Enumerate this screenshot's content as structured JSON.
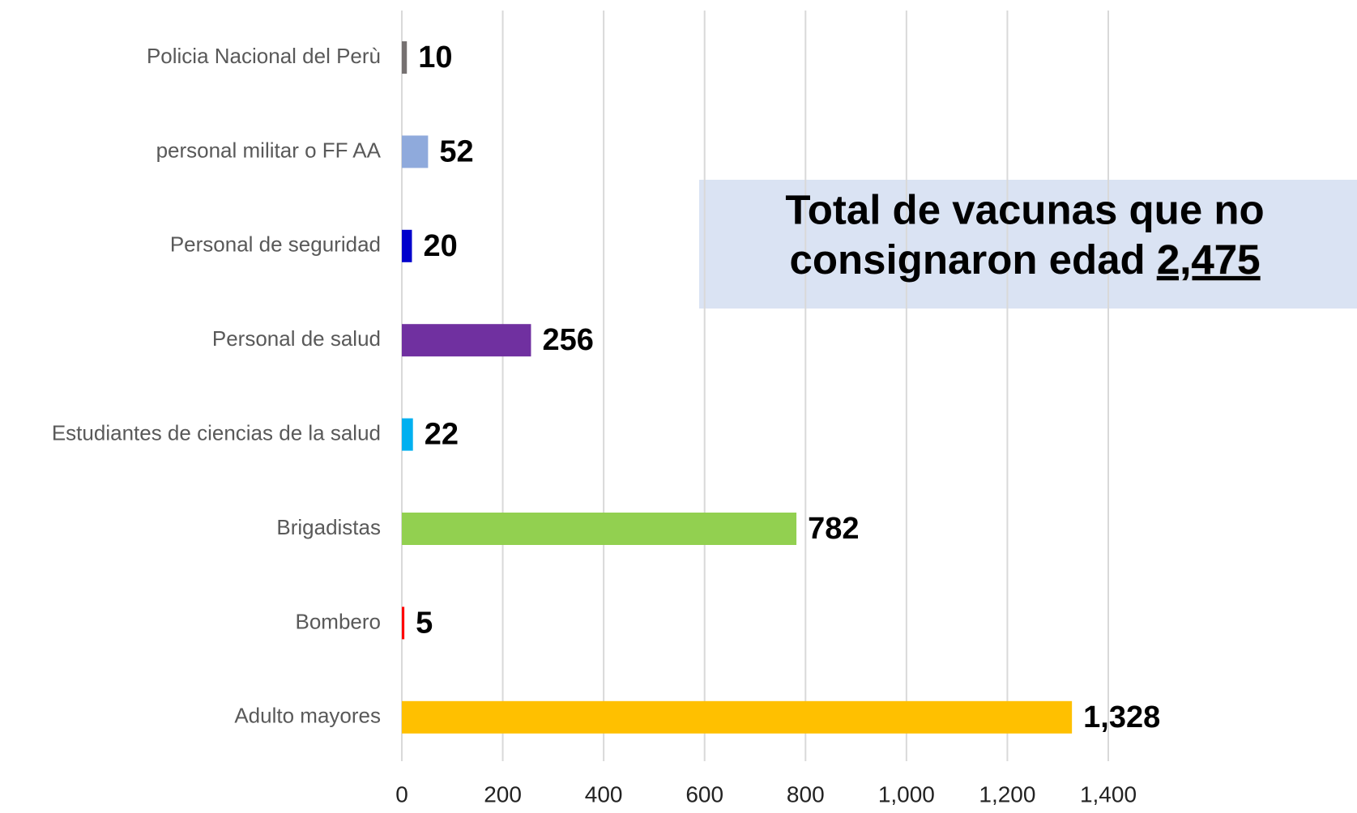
{
  "chart_data": {
    "type": "barh",
    "categories": [
      "Policia Nacional del Perù",
      "personal militar o FF AA",
      "Personal de seguridad",
      "Personal de salud",
      "Estudiantes de ciencias de la salud",
      "Brigadistas",
      "Bombero",
      "Adulto mayores"
    ],
    "values": [
      10,
      52,
      20,
      256,
      22,
      782,
      5,
      1328
    ],
    "value_labels": [
      "10",
      "52",
      "20",
      "256",
      "22",
      "782",
      "5",
      "1,328"
    ],
    "colors": [
      "#767171",
      "#8faadc",
      "#0000cc",
      "#7030a0",
      "#00b0f0",
      "#92d050",
      "#ff0000",
      "#ffc000"
    ],
    "xlim": [
      0,
      1400
    ],
    "xticks": [
      0,
      200,
      400,
      600,
      800,
      {
        "value": 1000,
        "label": "1,000"
      },
      {
        "value": 1200,
        "label": "1,200"
      },
      {
        "value": 1400,
        "label": "1,400"
      }
    ],
    "grid": true,
    "annotation": {
      "lines": [
        "Total de vacunas que no",
        "consignaron edad"
      ],
      "total": {
        "value": 2475,
        "label": "2,475"
      }
    }
  }
}
